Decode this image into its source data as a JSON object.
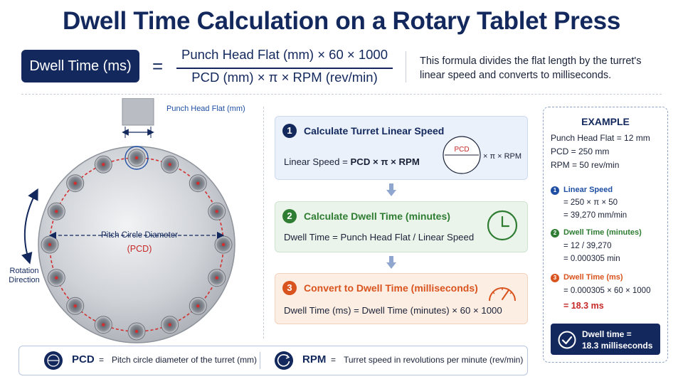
{
  "title": "Dwell Time Calculation on a Rotary Tablet Press",
  "formula": {
    "lhs": "Dwell Time (ms)",
    "equals": "=",
    "numerator": "Punch Head Flat (mm) × 60 × 1000",
    "denominator": "PCD (mm) × π × RPM (rev/min)",
    "note": "This formula divides the flat length by the turret's linear speed and converts to milliseconds."
  },
  "diagram": {
    "punch_label": "Punch Head Flat (mm)",
    "pcd_label": "Pitch Circle Diameter",
    "pcd_abbrev": "(PCD)",
    "rotation_label": [
      "Rotation",
      "Direction"
    ]
  },
  "steps": [
    {
      "number": "1",
      "title": "Calculate Turret Linear Speed",
      "formula_prefix": "Linear Speed = ",
      "formula_bold": "PCD × π × RPM",
      "circle_label": "PCD",
      "circle_suffix": "× π × RPM",
      "color": "#13285c",
      "icon": "circle-diameter-icon"
    },
    {
      "number": "2",
      "title": "Calculate Dwell Time (minutes)",
      "formula": "Dwell Time = Punch Head Flat / Linear Speed",
      "color": "#2e7d32",
      "icon": "clock-icon"
    },
    {
      "number": "3",
      "title": "Convert to Dwell Time (milliseconds)",
      "formula": "Dwell Time (ms) = Dwell Time (minutes) × 60 × 1000",
      "color": "#d9531e",
      "icon": "gauge-icon"
    }
  ],
  "example": {
    "heading": "EXAMPLE",
    "inputs": [
      "Punch Head Flat = 12 mm",
      "PCD = 250 mm",
      "RPM = 50 rev/min"
    ],
    "steps": [
      {
        "number": "1",
        "label": "Linear Speed",
        "lines": [
          "= 250 × π × 50",
          "= 39,270 mm/min"
        ],
        "color": "#1f4fa3"
      },
      {
        "number": "2",
        "label": "Dwell Time (minutes)",
        "lines": [
          "= 12 / 39,270",
          "= 0.000305 min"
        ],
        "color": "#2e7d32"
      },
      {
        "number": "3",
        "label": "Dwell Time (ms)",
        "lines": [
          "= 0.000305 × 60 × 1000",
          "= 18.3 ms"
        ],
        "color": "#d9531e"
      }
    ],
    "result": [
      "Dwell time =",
      "18.3 milliseconds"
    ]
  },
  "legend": {
    "pcd_term": "PCD",
    "pcd_eq": "=",
    "pcd_def": "Pitch circle diameter of the turret (mm)",
    "rpm_term": "RPM",
    "rpm_eq": "=",
    "rpm_def": "Turret speed in revolutions per minute (rev/min)"
  },
  "colors": {
    "navy": "#13285c",
    "green": "#2e7d32",
    "orange": "#d9531e",
    "red": "#c62828"
  }
}
